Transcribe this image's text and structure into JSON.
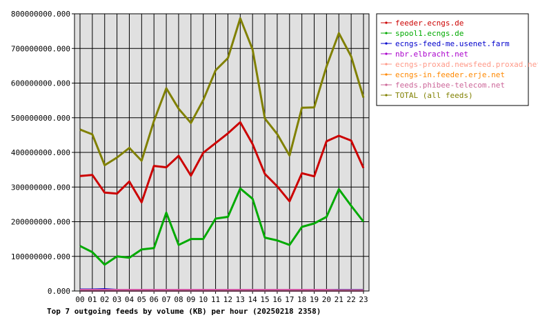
{
  "chart_data": {
    "type": "line",
    "title": "Top 7 outgoing feeds by volume (KB) per hour (20250218 2358)",
    "xlabel": "",
    "ylabel": "",
    "ylim": [
      0,
      800000000
    ],
    "yticks": [
      "0.000",
      "100000000.000",
      "200000000.000",
      "300000000.000",
      "400000000.000",
      "500000000.000",
      "600000000.000",
      "700000000.000",
      "800000000.000"
    ],
    "categories": [
      "00",
      "01",
      "02",
      "03",
      "04",
      "05",
      "06",
      "07",
      "08",
      "09",
      "10",
      "11",
      "12",
      "13",
      "14",
      "15",
      "16",
      "17",
      "18",
      "19",
      "20",
      "21",
      "22",
      "23"
    ],
    "grid": true,
    "legend_position": "right",
    "series": [
      {
        "name": "feeder.ecngs.de",
        "color": "#cc0000",
        "values": [
          332000000,
          335000000,
          284000000,
          281000000,
          316000000,
          256000000,
          361000000,
          357000000,
          390000000,
          333000000,
          399000000,
          427000000,
          455000000,
          487000000,
          424000000,
          338000000,
          302000000,
          259000000,
          340000000,
          331000000,
          432000000,
          448000000,
          434000000,
          355000000
        ]
      },
      {
        "name": "spool1.ecngs.de",
        "color": "#00aa00",
        "values": [
          130000000,
          112000000,
          76000000,
          100000000,
          96000000,
          120000000,
          124000000,
          226000000,
          133000000,
          150000000,
          150000000,
          209000000,
          214000000,
          296000000,
          266000000,
          154000000,
          146000000,
          133000000,
          185000000,
          195000000,
          214000000,
          294000000,
          246000000,
          200000000
        ]
      },
      {
        "name": "ecngs-feed-me.usenet.farm",
        "color": "#0000cc",
        "values": [
          4000000,
          4000000,
          5000000,
          3000000,
          3000000,
          3000000,
          3000000,
          3000000,
          3000000,
          3000000,
          3000000,
          3000000,
          3000000,
          3000000,
          3000000,
          3000000,
          3000000,
          3000000,
          3000000,
          3000000,
          3000000,
          3000000,
          3000000,
          3000000
        ]
      },
      {
        "name": "nbr.elbracht.net",
        "color": "#aa00cc",
        "values": [
          3000000,
          3000000,
          3000000,
          3000000,
          3000000,
          3000000,
          3000000,
          3000000,
          3000000,
          3000000,
          3000000,
          3000000,
          3000000,
          3000000,
          3000000,
          3000000,
          3000000,
          3000000,
          3000000,
          3000000,
          3000000,
          2000000,
          2000000,
          2000000
        ]
      },
      {
        "name": "ecngs-proxad.newsfeed.proxad.net",
        "color": "#ff9988",
        "values": [
          2000000,
          2000000,
          2000000,
          2000000,
          2000000,
          2000000,
          2000000,
          2000000,
          2000000,
          2000000,
          2000000,
          2000000,
          2000000,
          2000000,
          2000000,
          2000000,
          2000000,
          2000000,
          2000000,
          2000000,
          2000000,
          2000000,
          2000000,
          2000000
        ]
      },
      {
        "name": "ecngs-in.feeder.erje.net",
        "color": "#ff8800",
        "values": [
          1000000,
          1000000,
          1000000,
          1000000,
          1000000,
          1000000,
          1000000,
          1000000,
          1000000,
          1000000,
          1000000,
          1000000,
          1000000,
          1000000,
          1000000,
          1000000,
          1000000,
          1000000,
          1000000,
          1000000,
          1000000,
          1000000,
          1000000,
          1000000
        ]
      },
      {
        "name": "feeds.phibee-telecom.net",
        "color": "#cc6699",
        "values": [
          1000000,
          1000000,
          1000000,
          1000000,
          1000000,
          1000000,
          1000000,
          1000000,
          1000000,
          1000000,
          1000000,
          1000000,
          1000000,
          1000000,
          1000000,
          1000000,
          1000000,
          1000000,
          1000000,
          1000000,
          1000000,
          1000000,
          1000000,
          1000000
        ]
      },
      {
        "name": "TOTAL (all feeds)",
        "color": "#808000",
        "values": [
          466000000,
          452000000,
          363000000,
          385000000,
          413000000,
          376000000,
          491000000,
          585000000,
          526000000,
          485000000,
          551000000,
          637000000,
          672000000,
          787000000,
          697000000,
          498000000,
          453000000,
          391000000,
          529000000,
          530000000,
          648000000,
          744000000,
          677000000,
          558000000
        ]
      }
    ]
  }
}
